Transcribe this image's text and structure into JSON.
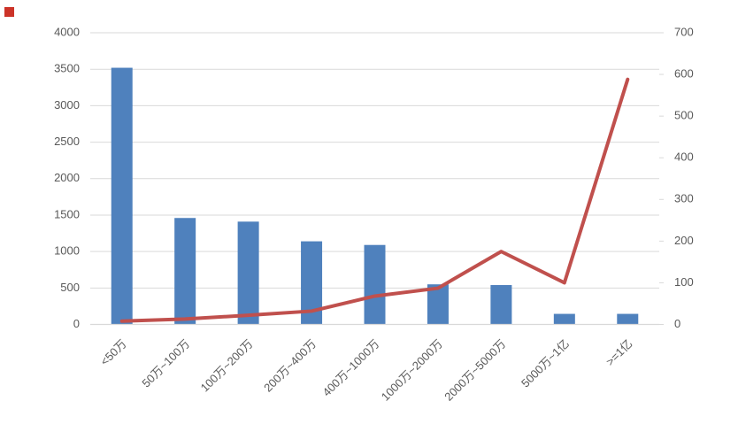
{
  "page": {
    "background": "#ffffff"
  },
  "marker": {
    "name": "red-square",
    "color": "#cc3328"
  },
  "colors": {
    "bar": "#4f81bd",
    "line": "#c0504d",
    "grid": "#d9d9d9",
    "axis_line": "#d9d9d9",
    "axis_text": "#595959"
  },
  "chart_data": {
    "type": "bar",
    "subtype": "combo-bar-line-dual-axis",
    "title": "",
    "xlabel": "",
    "ylabel": "",
    "legend": "none",
    "grid": "horizontal-left-axis",
    "categories": [
      "<50万",
      "50万~100万",
      "100万~200万",
      "200万~400万",
      "400万~1000万",
      "1000万~2000万",
      "2000万~5000万",
      "5000万~1亿",
      ">=1亿"
    ],
    "series": [
      {
        "name": "bars",
        "type": "bar",
        "axis": "left",
        "color": "#4f81bd",
        "values": [
          3520,
          1460,
          1410,
          1140,
          1090,
          550,
          540,
          145,
          145
        ]
      },
      {
        "name": "line",
        "type": "line",
        "axis": "right",
        "color": "#c0504d",
        "values": [
          8,
          13,
          22,
          32,
          68,
          87,
          175,
          100,
          588
        ]
      }
    ],
    "left_axis": {
      "min": 0,
      "max": 4000,
      "step": 500,
      "tick_labels": [
        "0",
        "500",
        "1000",
        "1500",
        "2000",
        "2500",
        "3000",
        "3500",
        "4000"
      ]
    },
    "right_axis": {
      "min": 0,
      "max": 700,
      "step": 100,
      "tick_labels": [
        "0",
        "100",
        "200",
        "300",
        "400",
        "500",
        "600",
        "700"
      ]
    },
    "x_tick_rotation_deg": 45
  }
}
